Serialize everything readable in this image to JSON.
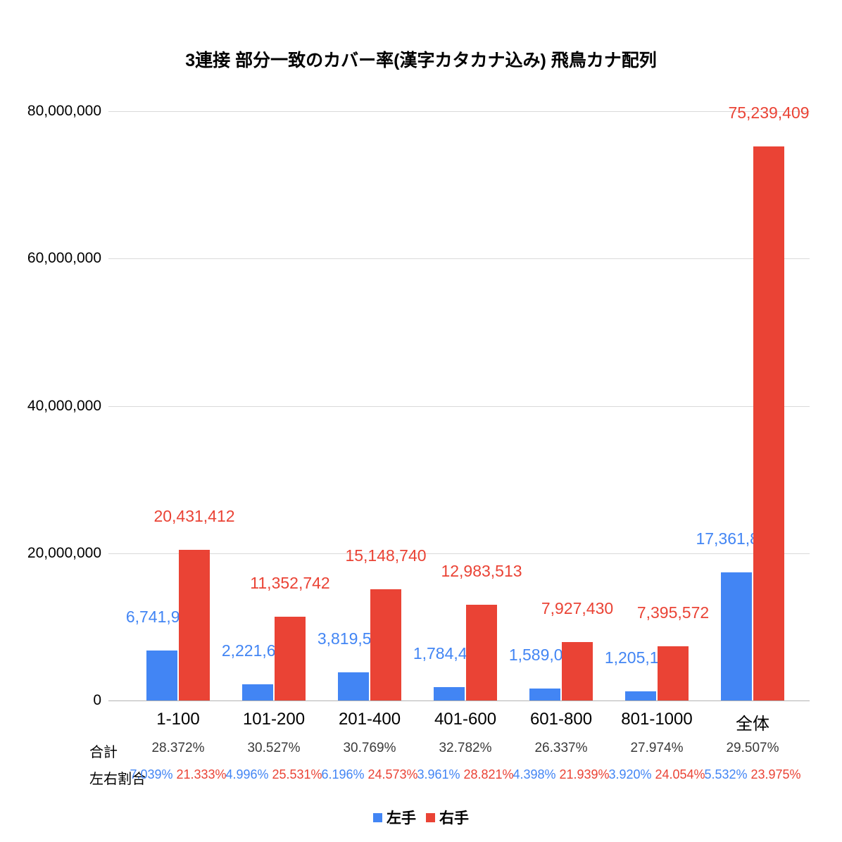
{
  "title": "3連接 部分一致のカバー率(漢字カタカナ込み) 飛鳥カナ配列",
  "colors": {
    "left": "#4285f4",
    "right": "#ea4335"
  },
  "chart_data": {
    "type": "bar",
    "categories": [
      "1-100",
      "101-200",
      "201-400",
      "401-600",
      "601-800",
      "801-1000",
      "全体"
    ],
    "series": [
      {
        "name": "左手",
        "color": "#4285f4",
        "values": [
          6741933,
          2221659,
          3819589,
          1784484,
          1589026,
          1205123,
          17361814
        ],
        "labels": [
          "6,741,933",
          "2,221,659",
          "3,819,589",
          "1,784,484",
          "1,589,026",
          "1,205,123",
          "17,361,814"
        ]
      },
      {
        "name": "右手",
        "color": "#ea4335",
        "values": [
          20431412,
          11352742,
          15148740,
          12983513,
          7927430,
          7395572,
          75239409
        ],
        "labels": [
          "20,431,412",
          "11,352,742",
          "15,148,740",
          "12,983,513",
          "7,927,430",
          "7,395,572",
          "75,239,409"
        ]
      }
    ],
    "ylim": [
      0,
      80000000
    ],
    "yticks": [
      {
        "value": 0,
        "label": "0"
      },
      {
        "value": 20000000,
        "label": "20,000,000"
      },
      {
        "value": 40000000,
        "label": "40,000,000"
      },
      {
        "value": 60000000,
        "label": "60,000,000"
      },
      {
        "value": 80000000,
        "label": "80,000,000"
      }
    ],
    "grid": true,
    "legend_position": "bottom"
  },
  "annotation_rows": {
    "total_label": "合計",
    "totals": [
      "28.372%",
      "30.527%",
      "30.769%",
      "32.782%",
      "26.337%",
      "27.974%",
      "29.507%"
    ],
    "ratio_label": "左右割合",
    "left_ratios": [
      "7.039%",
      "4.996%",
      "6.196%",
      "3.961%",
      "4.398%",
      "3.920%",
      "5.532%"
    ],
    "right_ratios": [
      "21.333%",
      "25.531%",
      "24.573%",
      "28.821%",
      "21.939%",
      "24.054%",
      "23.975%"
    ]
  },
  "legend": [
    {
      "label": "左手",
      "color": "#4285f4"
    },
    {
      "label": "右手",
      "color": "#ea4335"
    }
  ]
}
